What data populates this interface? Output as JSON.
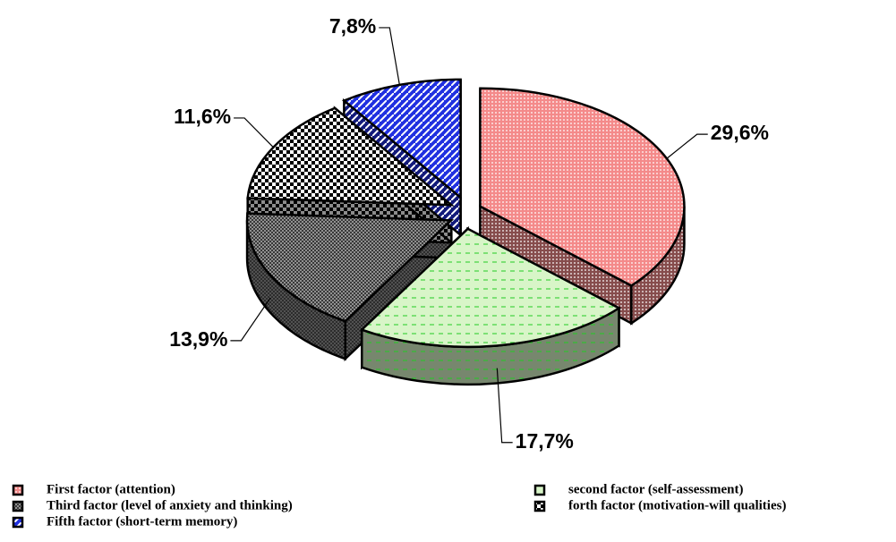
{
  "chart_data": {
    "type": "pie",
    "categories": [
      "First factor (attention)",
      "second factor (self-assessment)",
      "Third factor (level of anxiety and thinking)",
      "forth factor (motivation-will qualities)",
      "Fifth factor (short-term memory)"
    ],
    "values": [
      29.6,
      17.7,
      13.9,
      11.6,
      7.8
    ],
    "value_labels": [
      "29,6%",
      "17,7%",
      "13,9%",
      "11,6%",
      "7,8%"
    ],
    "colors": [
      "#f48a8a",
      "#d8f5c8",
      "#a8a8a8",
      "#ffffff",
      "#2030e0"
    ],
    "legend": "bottom"
  }
}
